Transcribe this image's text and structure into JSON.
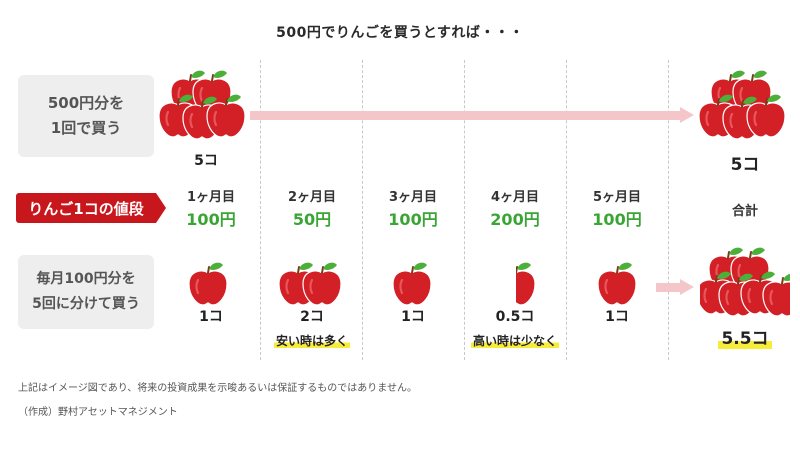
{
  "title": "500円でりんごを買うとすれば・・・",
  "lump_sum": {
    "label_line1": "500円分を",
    "label_line2": "1回で買う",
    "count": "5コ",
    "total_count": "5コ"
  },
  "price_row": {
    "label": "りんご1コの値段",
    "total_label": "合計"
  },
  "months": [
    {
      "label": "1ヶ月目",
      "price": "100円",
      "count": "1コ",
      "apples": 1
    },
    {
      "label": "2ヶ月目",
      "price": "50円",
      "count": "2コ",
      "apples": 2,
      "note": "安い時は多く"
    },
    {
      "label": "3ヶ月目",
      "price": "100円",
      "count": "1コ",
      "apples": 1
    },
    {
      "label": "4ヶ月目",
      "price": "200円",
      "count": "0.5コ",
      "apples": 0.5,
      "note": "高い時は少なく"
    },
    {
      "label": "5ヶ月目",
      "price": "100円",
      "count": "1コ",
      "apples": 1
    }
  ],
  "installment": {
    "label_line1": "毎月100円分を",
    "label_line2": "5回に分けて買う",
    "total_count": "5.5コ"
  },
  "footnotes": {
    "disclaimer": "上記はイメージ図であり、将来の投資成果を示唆あるいは保証するものではありません。",
    "source": "（作成）野村アセットマネジメント"
  },
  "colors": {
    "apple": "#d31f26",
    "leaf": "#4caf3a",
    "price_tag": "#c8161d",
    "price_text": "#3aa535",
    "arrow": "#f4c6c9",
    "highlight": "#f8ec3a"
  }
}
